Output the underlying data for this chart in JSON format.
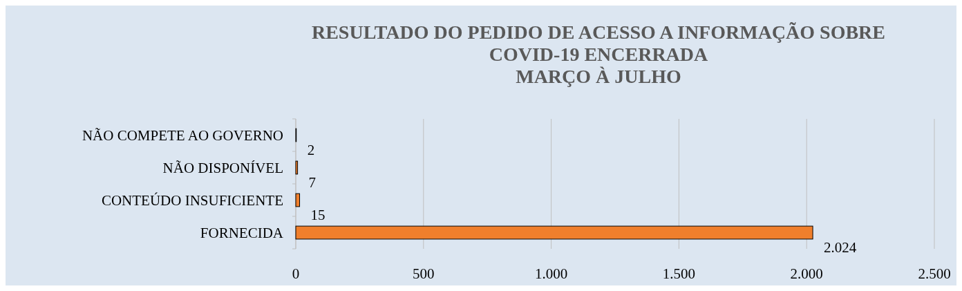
{
  "chart_data": {
    "type": "bar",
    "orientation": "horizontal",
    "title": "RESULTADO DO PEDIDO DE ACESSO A INFORMAÇÃO SOBRE\nCOVID-19  ENCERRADA\nMARÇO À JULHO",
    "categories": [
      "NÃO COMPETE AO GOVERNO",
      "NÃO DISPONÍVEL",
      "CONTEÚDO INSUFICIENTE",
      "FORNECIDA"
    ],
    "values": [
      2,
      7,
      15,
      2024
    ],
    "value_labels": [
      "2",
      "7",
      "15",
      "2.024"
    ],
    "color": "#f07f2c",
    "xlim": [
      0,
      2500
    ],
    "xticks": [
      0,
      500,
      {
        "value": 1000,
        "label": "1.000"
      },
      {
        "value": 1500,
        "label": "1.500"
      },
      {
        "value": 2000,
        "label": "2.000"
      },
      {
        "value": 2500,
        "label": "2.500"
      }
    ],
    "grid": "x"
  }
}
